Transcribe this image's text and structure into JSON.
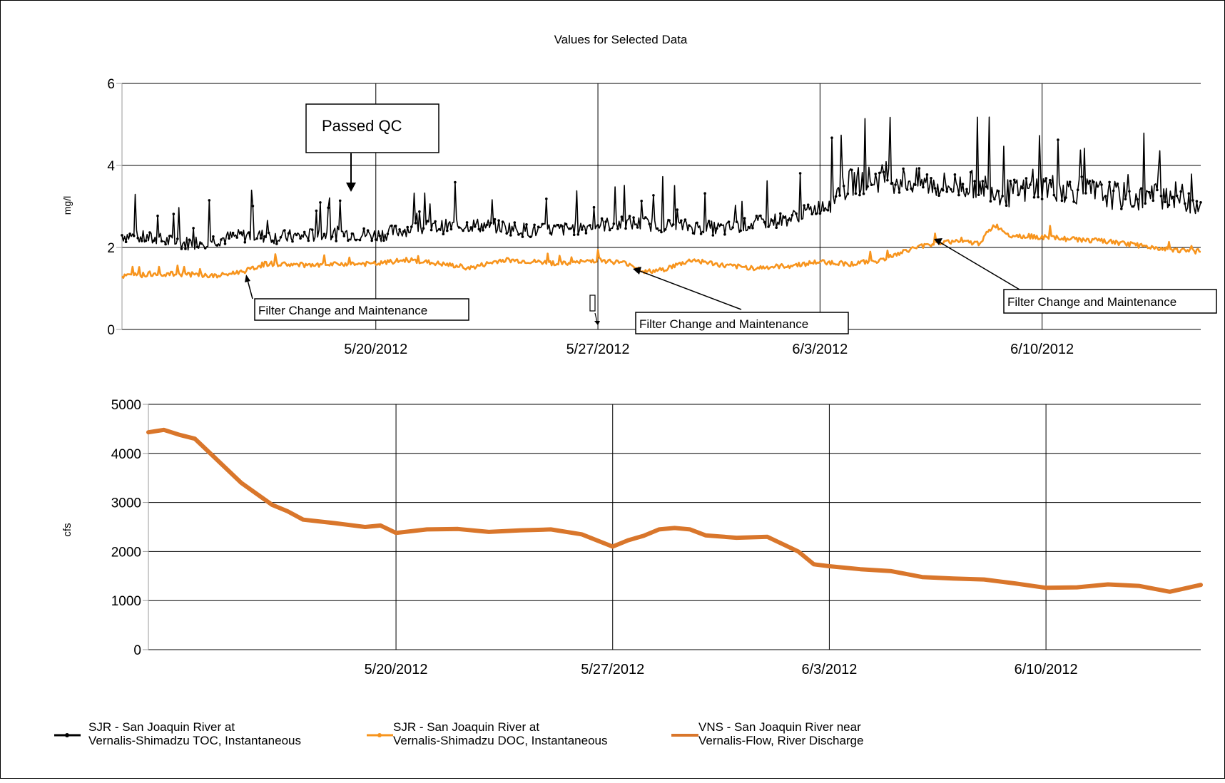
{
  "title": "Values for Selected Data",
  "colors": {
    "toc": "#000000",
    "doc": "#f7941d",
    "flow": "#d9762b",
    "grid": "#000000",
    "axis": "#999999"
  },
  "chart_data": [
    {
      "type": "line",
      "title": "Values for Selected Data",
      "ylabel": "mg/l",
      "xlabel": "",
      "xlim": [
        "2012-05-12",
        "2012-06-15"
      ],
      "ylim": [
        0,
        6
      ],
      "yticks": [
        0,
        2,
        4,
        6
      ],
      "xticks": [
        {
          "date": "2012-05-20",
          "label": "5/20/2012"
        },
        {
          "date": "2012-05-27",
          "label": "5/27/2012"
        },
        {
          "date": "2012-06-03",
          "label": "6/3/2012"
        },
        {
          "date": "2012-06-10",
          "label": "6/10/2012"
        }
      ],
      "grid": true,
      "series": [
        {
          "name": "SJR - San Joaquin River at Vernalis-Shimadzu TOC, Instantaneous",
          "key": "toc",
          "points": [
            [
              "2012-05-12",
              2.3
            ],
            [
              "2012-05-13",
              2.2
            ],
            [
              "2012-05-14",
              2.1
            ],
            [
              "2012-05-15",
              2.2
            ],
            [
              "2012-05-16",
              2.3
            ],
            [
              "2012-05-17",
              2.25
            ],
            [
              "2012-05-18",
              2.3
            ],
            [
              "2012-05-19",
              2.35
            ],
            [
              "2012-05-20",
              2.3
            ],
            [
              "2012-05-21",
              2.45
            ],
            [
              "2012-05-22",
              2.5
            ],
            [
              "2012-05-23",
              2.55
            ],
            [
              "2012-05-24",
              2.5
            ],
            [
              "2012-05-25",
              2.4
            ],
            [
              "2012-05-26",
              2.45
            ],
            [
              "2012-05-27",
              2.55
            ],
            [
              "2012-05-28",
              2.6
            ],
            [
              "2012-05-29",
              2.55
            ],
            [
              "2012-05-30",
              2.5
            ],
            [
              "2012-05-31",
              2.45
            ],
            [
              "2012-06-01",
              2.6
            ],
            [
              "2012-06-02",
              2.7
            ],
            [
              "2012-06-03",
              3.0
            ],
            [
              "2012-06-04",
              3.6
            ],
            [
              "2012-06-05",
              3.7
            ],
            [
              "2012-06-06",
              3.6
            ],
            [
              "2012-06-07",
              3.5
            ],
            [
              "2012-06-08",
              3.55
            ],
            [
              "2012-06-09",
              3.3
            ],
            [
              "2012-06-10",
              3.5
            ],
            [
              "2012-06-11",
              3.4
            ],
            [
              "2012-06-12",
              3.3
            ],
            [
              "2012-06-13",
              3.2
            ],
            [
              "2012-06-14",
              3.3
            ],
            [
              "2012-06-15",
              3.1
            ]
          ]
        },
        {
          "name": "SJR - San Joaquin River at Vernalis-Shimadzu DOC, Instantaneous",
          "key": "doc",
          "points": [
            [
              "2012-05-12",
              1.3
            ],
            [
              "2012-05-13",
              1.35
            ],
            [
              "2012-05-14",
              1.35
            ],
            [
              "2012-05-15",
              1.3
            ],
            [
              "2012-05-16",
              1.45
            ],
            [
              "2012-05-16.5",
              1.6
            ],
            [
              "2012-05-17",
              1.6
            ],
            [
              "2012-05-18",
              1.55
            ],
            [
              "2012-05-19",
              1.6
            ],
            [
              "2012-05-20",
              1.6
            ],
            [
              "2012-05-21",
              1.7
            ],
            [
              "2012-05-22",
              1.6
            ],
            [
              "2012-05-23",
              1.5
            ],
            [
              "2012-05-24",
              1.7
            ],
            [
              "2012-05-25",
              1.65
            ],
            [
              "2012-05-26",
              1.6
            ],
            [
              "2012-05-27",
              1.7
            ],
            [
              "2012-05-28",
              1.6
            ],
            [
              "2012-05-28.5",
              1.4
            ],
            [
              "2012-05-29",
              1.45
            ],
            [
              "2012-05-30",
              1.7
            ],
            [
              "2012-05-31",
              1.55
            ],
            [
              "2012-06-01",
              1.5
            ],
            [
              "2012-06-02",
              1.55
            ],
            [
              "2012-06-03",
              1.65
            ],
            [
              "2012-06-04",
              1.6
            ],
            [
              "2012-06-05",
              1.7
            ],
            [
              "2012-06-06",
              2.0
            ],
            [
              "2012-06-07",
              2.15
            ],
            [
              "2012-06-08",
              2.1
            ],
            [
              "2012-06-08.5",
              2.55
            ],
            [
              "2012-06-09",
              2.3
            ],
            [
              "2012-06-10",
              2.25
            ],
            [
              "2012-06-11",
              2.2
            ],
            [
              "2012-06-12",
              2.15
            ],
            [
              "2012-06-13",
              2.05
            ],
            [
              "2012-06-14",
              1.95
            ],
            [
              "2012-06-15",
              1.9
            ]
          ]
        }
      ],
      "annotations": [
        {
          "text": "Passed QC"
        },
        {
          "text": "Filter Change and Maintenance"
        },
        {
          "text": "Filter Change and Maintenance"
        },
        {
          "text": "Filter Change and Maintenance"
        }
      ]
    },
    {
      "type": "line",
      "ylabel": "cfs",
      "xlabel": "",
      "xlim": [
        "2012-05-12",
        "2012-06-15"
      ],
      "ylim": [
        0,
        5000
      ],
      "yticks": [
        0,
        1000,
        2000,
        3000,
        4000,
        5000
      ],
      "xticks": [
        {
          "date": "2012-05-20",
          "label": "5/20/2012"
        },
        {
          "date": "2012-05-27",
          "label": "5/27/2012"
        },
        {
          "date": "2012-06-03",
          "label": "6/3/2012"
        },
        {
          "date": "2012-06-10",
          "label": "6/10/2012"
        }
      ],
      "grid": true,
      "series": [
        {
          "name": "VNS - San Joaquin River near Vernalis-Flow, River Discharge",
          "key": "flow",
          "points": [
            [
              "2012-05-12",
              4430
            ],
            [
              "2012-05-12.5",
              4480
            ],
            [
              "2012-05-13",
              4380
            ],
            [
              "2012-05-13.5",
              4300
            ],
            [
              "2012-05-14",
              4000
            ],
            [
              "2012-05-15",
              3400
            ],
            [
              "2012-05-16",
              2950
            ],
            [
              "2012-05-16.5",
              2820
            ],
            [
              "2012-05-17",
              2650
            ],
            [
              "2012-05-18",
              2580
            ],
            [
              "2012-05-19",
              2500
            ],
            [
              "2012-05-19.5",
              2530
            ],
            [
              "2012-05-20",
              2380
            ],
            [
              "2012-05-21",
              2450
            ],
            [
              "2012-05-22",
              2460
            ],
            [
              "2012-05-23",
              2400
            ],
            [
              "2012-05-24",
              2430
            ],
            [
              "2012-05-25",
              2450
            ],
            [
              "2012-05-26",
              2350
            ],
            [
              "2012-05-27",
              2100
            ],
            [
              "2012-05-27.5",
              2230
            ],
            [
              "2012-05-28",
              2320
            ],
            [
              "2012-05-28.5",
              2450
            ],
            [
              "2012-05-29",
              2480
            ],
            [
              "2012-05-29.5",
              2450
            ],
            [
              "2012-05-30",
              2330
            ],
            [
              "2012-05-31",
              2280
            ],
            [
              "2012-06-01",
              2300
            ],
            [
              "2012-06-02",
              2000
            ],
            [
              "2012-06-02.5",
              1740
            ],
            [
              "2012-06-03",
              1700
            ],
            [
              "2012-06-04",
              1640
            ],
            [
              "2012-06-05",
              1600
            ],
            [
              "2012-06-06",
              1480
            ],
            [
              "2012-06-07",
              1450
            ],
            [
              "2012-06-08",
              1430
            ],
            [
              "2012-06-09",
              1350
            ],
            [
              "2012-06-10",
              1260
            ],
            [
              "2012-06-11",
              1270
            ],
            [
              "2012-06-12",
              1330
            ],
            [
              "2012-06-13",
              1300
            ],
            [
              "2012-06-14",
              1180
            ],
            [
              "2012-06-15",
              1320
            ]
          ]
        }
      ]
    }
  ],
  "legend": [
    {
      "line1": "SJR - San Joaquin River at",
      "line2": "Vernalis-Shimadzu TOC, Instantaneous",
      "key": "toc"
    },
    {
      "line1": "SJR - San Joaquin River at",
      "line2": "Vernalis-Shimadzu DOC, Instantaneous",
      "key": "doc"
    },
    {
      "line1": "VNS - San Joaquin River near",
      "line2": "Vernalis-Flow, River Discharge",
      "key": "flow"
    }
  ]
}
